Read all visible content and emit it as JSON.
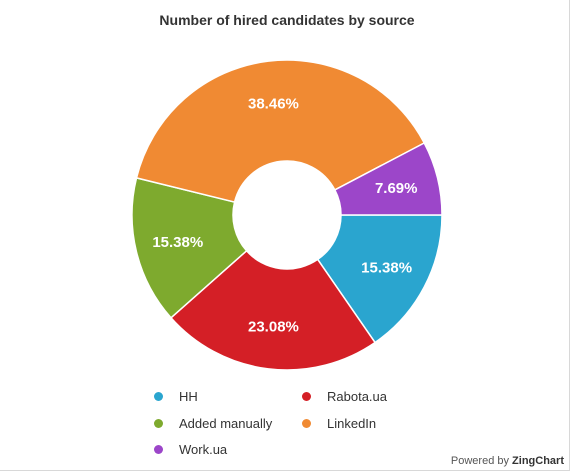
{
  "chart_data": {
    "type": "pie",
    "title": "Number of hired candidates by source",
    "donut": true,
    "categories": [
      "HH",
      "Rabota.ua",
      "Added manually",
      "LinkedIn",
      "Work.ua"
    ],
    "values": [
      15.38,
      23.08,
      15.38,
      38.46,
      7.69
    ],
    "labels": [
      "15.38%",
      "23.08%",
      "15.38%",
      "38.46%",
      "7.69%"
    ],
    "colors": [
      "#2aa5cf",
      "#d41f26",
      "#7eaa2e",
      "#f08a33",
      "#9c46c9"
    ],
    "legend_position": "bottom"
  },
  "credit": {
    "prefix": "Powered by",
    "brand": "ZingChart"
  }
}
